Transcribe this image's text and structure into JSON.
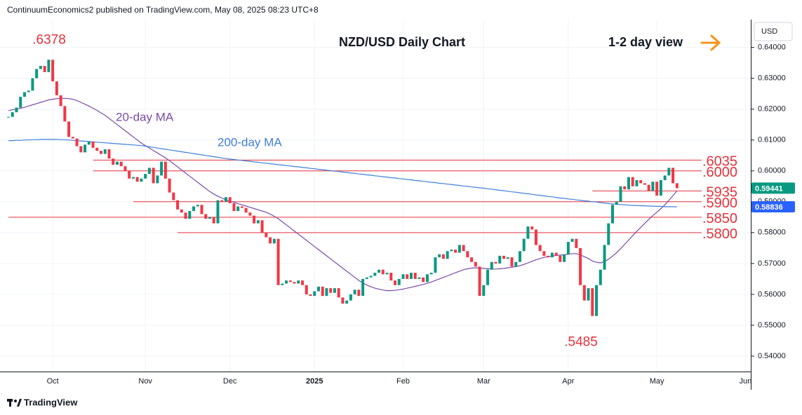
{
  "header": "ContinuumEconomics2 published on TradingView.com, May 08, 2025 08:23 UTC+8",
  "footer": "TradingView",
  "chart_data": {
    "type": "candlestick",
    "title": "NZD/USD Daily Chart",
    "subtitle": "1-2 day view",
    "currency": "USD",
    "categories": [
      null,
      null,
      null,
      null,
      null,
      null,
      null,
      null,
      null,
      null,
      null,
      "Oct",
      null,
      null,
      null,
      null,
      null,
      null,
      null,
      null,
      null,
      null,
      null,
      null,
      null,
      null,
      null,
      null,
      null,
      null,
      null,
      null,
      null,
      null,
      "Nov",
      null,
      null,
      null,
      null,
      null,
      null,
      null,
      null,
      null,
      null,
      null,
      null,
      null,
      null,
      null,
      null,
      null,
      null,
      null,
      null,
      "Dec",
      null,
      null,
      null,
      null,
      null,
      null,
      null,
      null,
      null,
      null,
      null,
      null,
      null,
      null,
      null,
      null,
      null,
      null,
      null,
      null,
      "2025",
      null,
      null,
      null,
      null,
      null,
      null,
      null,
      null,
      null,
      null,
      null,
      null,
      null,
      null,
      null,
      null,
      null,
      null,
      null,
      null,
      null,
      "Feb",
      null,
      null,
      null,
      null,
      null,
      null,
      null,
      null,
      null,
      null,
      null,
      null,
      null,
      null,
      null,
      null,
      null,
      null,
      null,
      "Mar",
      null,
      null,
      null,
      null,
      null,
      null,
      null,
      null,
      null,
      null,
      null,
      null,
      null,
      null,
      null,
      null,
      null,
      null,
      null,
      null,
      "Apr",
      null,
      null,
      null,
      null,
      null,
      null,
      null,
      null,
      null,
      null,
      null,
      null,
      null,
      null,
      null,
      null,
      null,
      null,
      null,
      null,
      null,
      "May",
      null,
      null,
      null,
      null,
      null,
      null,
      null,
      null,
      null,
      null,
      null,
      null,
      null,
      null,
      null,
      null,
      null,
      null,
      null,
      null,
      null,
      "Jun"
    ],
    "values": [
      0.6175,
      0.619,
      0.6205,
      0.624,
      0.6255,
      0.626,
      0.63,
      0.633,
      0.634,
      0.632,
      0.636,
      0.629,
      0.6245,
      0.621,
      0.616,
      0.611,
      0.6105,
      0.608,
      0.606,
      0.6085,
      0.6095,
      0.6075,
      0.6065,
      0.6055,
      0.607,
      0.604,
      0.602,
      0.603,
      0.6015,
      0.6,
      0.5975,
      0.598,
      0.5965,
      0.5975,
      0.599,
      0.601,
      0.596,
      0.5985,
      0.603,
      0.5975,
      0.593,
      0.5905,
      0.5875,
      0.5865,
      0.5845,
      0.587,
      0.5885,
      0.589,
      0.586,
      0.5845,
      0.585,
      0.583,
      0.5905,
      0.59,
      0.5915,
      0.5895,
      0.587,
      0.5885,
      0.588,
      0.5865,
      0.5855,
      0.583,
      0.584,
      0.58,
      0.5785,
      0.5765,
      0.578,
      0.563,
      0.5635,
      0.5645,
      0.564,
      0.5635,
      0.5645,
      0.563,
      0.56,
      0.5595,
      0.561,
      0.5625,
      0.5595,
      0.562,
      0.5605,
      0.562,
      0.559,
      0.557,
      0.558,
      0.56,
      0.5615,
      0.5595,
      0.565,
      0.5655,
      0.566,
      0.567,
      0.568,
      0.5665,
      0.567,
      0.5645,
      0.563,
      0.565,
      0.5665,
      0.565,
      0.567,
      0.565,
      0.5655,
      0.564,
      0.5665,
      0.567,
      0.572,
      0.573,
      0.5715,
      0.574,
      0.5745,
      0.5735,
      0.576,
      0.574,
      0.572,
      0.5705,
      0.569,
      0.5595,
      0.563,
      0.568,
      0.5705,
      0.57,
      0.5725,
      0.5715,
      0.572,
      0.569,
      0.5705,
      0.574,
      0.578,
      0.582,
      0.581,
      0.576,
      0.574,
      0.5725,
      0.572,
      0.5735,
      0.5725,
      0.5705,
      0.573,
      0.577,
      0.578,
      0.575,
      0.563,
      0.558,
      0.562,
      0.553,
      0.563,
      0.568,
      0.576,
      0.583,
      0.589,
      0.59,
      0.595,
      0.594,
      0.598,
      0.595,
      0.597,
      0.596,
      0.5955,
      0.5935,
      0.5965,
      0.592,
      0.597,
      0.5985,
      0.601,
      0.596,
      0.5944,
      null,
      null,
      null,
      null,
      null,
      null,
      null,
      null,
      null,
      null,
      null,
      null,
      null,
      null,
      null,
      null,
      null
    ],
    "up_color": "#089981",
    "down_color": "#f23645",
    "series": [
      {
        "name": "20-day MA",
        "color": "#7b4aa8",
        "values": [
          0.6195,
          0.6198,
          0.62,
          0.6203,
          0.6206,
          0.621,
          0.6214,
          0.6218,
          0.6222,
          0.6226,
          0.623,
          0.6232,
          0.6234,
          0.6235,
          0.6235,
          0.6234,
          0.6232,
          0.6228,
          0.6222,
          0.6216,
          0.621,
          0.6203,
          0.6196,
          0.6188,
          0.618,
          0.617,
          0.616,
          0.615,
          0.614,
          0.613,
          0.612,
          0.611,
          0.61,
          0.609,
          0.6082,
          0.6074,
          0.6066,
          0.6058,
          0.605,
          0.6042,
          0.6033,
          0.6023,
          0.6013,
          0.6003,
          0.5993,
          0.5983,
          0.5973,
          0.5963,
          0.5953,
          0.5943,
          0.5933,
          0.5925,
          0.5918,
          0.5912,
          0.5906,
          0.5902,
          0.5898,
          0.5894,
          0.589,
          0.5886,
          0.5882,
          0.5878,
          0.5874,
          0.587,
          0.5866,
          0.586,
          0.5853,
          0.5845,
          0.5835,
          0.5825,
          0.5815,
          0.5805,
          0.5795,
          0.5785,
          0.5775,
          0.5765,
          0.5755,
          0.5745,
          0.5735,
          0.5725,
          0.5715,
          0.5705,
          0.5695,
          0.5685,
          0.5675,
          0.5665,
          0.5655,
          0.5645,
          0.5637,
          0.563,
          0.5625,
          0.562,
          0.5617,
          0.5614,
          0.5612,
          0.5612,
          0.5613,
          0.5615,
          0.5617,
          0.562,
          0.5623,
          0.5626,
          0.5629,
          0.5632,
          0.5636,
          0.564,
          0.5645,
          0.565,
          0.5655,
          0.566,
          0.5665,
          0.567,
          0.5675,
          0.568,
          0.5683,
          0.5685,
          0.5686,
          0.5685,
          0.5684,
          0.5683,
          0.5682,
          0.5682,
          0.5683,
          0.5684,
          0.5686,
          0.5688,
          0.569,
          0.5693,
          0.5697,
          0.5702,
          0.5707,
          0.5712,
          0.5716,
          0.572,
          0.5722,
          0.5724,
          0.5726,
          0.5727,
          0.5728,
          0.573,
          0.5732,
          0.5732,
          0.5728,
          0.5722,
          0.5716,
          0.5708,
          0.5704,
          0.5702,
          0.5706,
          0.5714,
          0.5724,
          0.5735,
          0.5748,
          0.5762,
          0.5776,
          0.579,
          0.5804,
          0.5817,
          0.583,
          0.5843,
          0.5855,
          0.5866,
          0.5878,
          0.589,
          0.5905,
          0.592,
          0.5935,
          null,
          null,
          null,
          null,
          null,
          null,
          null,
          null,
          null,
          null,
          null,
          null,
          null,
          null,
          null,
          null,
          null
        ]
      },
      {
        "name": "200-day MA",
        "color": "#3f7fd9",
        "values": [
          0.6098,
          0.6098,
          0.6099,
          0.6099,
          0.61,
          0.61,
          0.6101,
          0.6101,
          0.6102,
          0.6102,
          0.6102,
          0.6102,
          0.6102,
          0.6101,
          0.6101,
          0.61,
          0.6099,
          0.6098,
          0.6097,
          0.6096,
          0.6095,
          0.6094,
          0.6093,
          0.6092,
          0.6091,
          0.609,
          0.6089,
          0.6088,
          0.6087,
          0.6086,
          0.6085,
          0.6084,
          0.6083,
          0.6082,
          0.608,
          0.6078,
          0.6076,
          0.6074,
          0.6072,
          0.607,
          0.6068,
          0.6066,
          0.6064,
          0.6062,
          0.606,
          0.6058,
          0.6056,
          0.6054,
          0.6052,
          0.605,
          0.6048,
          0.6046,
          0.6044,
          0.6042,
          0.604,
          0.6038,
          0.6037,
          0.6035,
          0.6034,
          0.6032,
          0.6031,
          0.6029,
          0.6028,
          0.6026,
          0.6025,
          0.6023,
          0.6022,
          0.602,
          0.6019,
          0.6017,
          0.6016,
          0.6014,
          0.6013,
          0.6011,
          0.601,
          0.6008,
          0.6007,
          0.6005,
          0.6004,
          0.6002,
          0.6001,
          0.5999,
          0.5998,
          0.5996,
          0.5995,
          0.5993,
          0.5992,
          0.599,
          0.5989,
          0.5987,
          0.5986,
          0.5984,
          0.5983,
          0.5981,
          0.598,
          0.5978,
          0.5977,
          0.5975,
          0.5974,
          0.5972,
          0.5971,
          0.5969,
          0.5968,
          0.5966,
          0.5965,
          0.5963,
          0.5962,
          0.596,
          0.5959,
          0.5957,
          0.5956,
          0.5954,
          0.5953,
          0.5951,
          0.595,
          0.5948,
          0.5947,
          0.5945,
          0.5944,
          0.5942,
          0.5941,
          0.5939,
          0.5937,
          0.5936,
          0.5934,
          0.5932,
          0.5931,
          0.5929,
          0.5927,
          0.5926,
          0.5924,
          0.5922,
          0.5921,
          0.5919,
          0.5917,
          0.5916,
          0.5914,
          0.5912,
          0.5911,
          0.5909,
          0.5908,
          0.5906,
          0.5905,
          0.5903,
          0.5902,
          0.59,
          0.5899,
          0.5897,
          0.5896,
          0.5894,
          0.5893,
          0.5892,
          0.5891,
          0.589,
          0.5889,
          0.5888,
          0.5888,
          0.5887,
          0.5887,
          0.5886,
          0.5886,
          0.5885,
          0.5885,
          0.5884,
          0.5884,
          0.5884,
          0.58836,
          null,
          null,
          null,
          null,
          null,
          null,
          null,
          null,
          null,
          null,
          null,
          null,
          null,
          null,
          null,
          null,
          null
        ]
      }
    ],
    "ylim": [
      0.535,
      0.649
    ],
    "yticks": [
      {
        "value": 0.54,
        "label": "0.54000"
      },
      {
        "value": 0.55,
        "label": "0.55000"
      },
      {
        "value": 0.56,
        "label": "0.56000"
      },
      {
        "value": 0.57,
        "label": "0.57000"
      },
      {
        "value": 0.58,
        "label": "0.58000"
      },
      {
        "value": 0.59,
        "label": "0.59000"
      },
      {
        "value": 0.6,
        "label": "0.60000"
      },
      {
        "value": 0.61,
        "label": "0.61000"
      },
      {
        "value": 0.62,
        "label": "0.62000"
      },
      {
        "value": 0.63,
        "label": "0.63000"
      },
      {
        "value": 0.64,
        "label": "0.64000"
      }
    ],
    "grid": true,
    "level_color": "#e5323b",
    "levels": [
      {
        "value": 0.6035,
        "label": ".6035"
      },
      {
        "value": 0.6,
        "label": ".6000"
      },
      {
        "value": 0.5935,
        "label": ".5935"
      },
      {
        "value": 0.59,
        "label": ".5900"
      },
      {
        "value": 0.585,
        "label": ".5850"
      },
      {
        "value": 0.58,
        "label": ".5800"
      }
    ],
    "annotations": [
      {
        "value": 0.6378,
        "label": ".6378"
      },
      {
        "value": 0.5485,
        "label": ".5485"
      }
    ],
    "price_tags": [
      {
        "value": 0.59441,
        "label": "0.59441",
        "color": "#089981"
      },
      {
        "value": 0.58836,
        "label": "0.58836",
        "color": "#2962ff"
      }
    ]
  }
}
